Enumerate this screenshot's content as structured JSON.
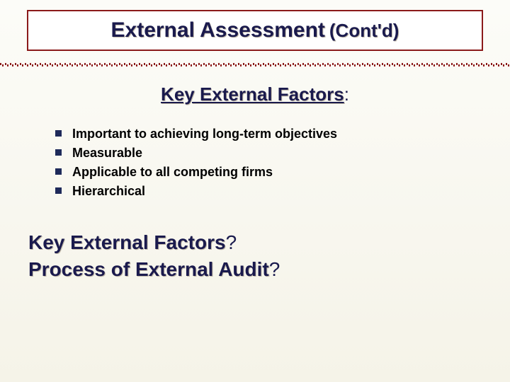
{
  "colors": {
    "title_text": "#1a1a4d",
    "title_border": "#8b1a1a",
    "title_bg": "#ffffff",
    "slide_bg_top": "#fcfcf8",
    "slide_bg_bottom": "#f5f3e8",
    "bullet_marker": "#1e2a5a",
    "bullet_text": "#000000",
    "shadow": "#c0b8a8"
  },
  "typography": {
    "title_main_size": 30,
    "title_suffix_size": 26,
    "subtitle_size": 26,
    "bullet_size": 18,
    "question_size": 28,
    "family": "Arial"
  },
  "title": {
    "main": "External Assessment",
    "suffix": "(Cont'd)"
  },
  "subtitle": {
    "text": "Key External Factors",
    "trailing": ":"
  },
  "bullets": [
    "Important to achieving long-term objectives",
    "Measurable",
    "Applicable to all competing firms",
    "Hierarchical"
  ],
  "questions": [
    {
      "text": "Key External Factors",
      "q": "?"
    },
    {
      "text": "Process of External Audit",
      "q": "?"
    }
  ]
}
